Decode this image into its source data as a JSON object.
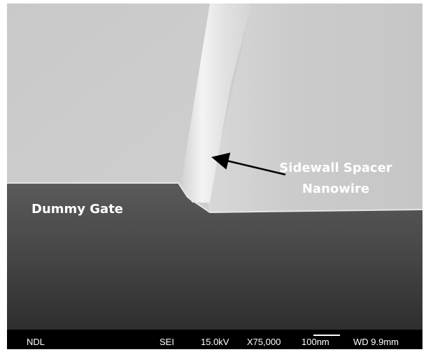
{
  "annotations": {
    "spacer_line1": "Sidewall Spacer",
    "spacer_line2": "Nanowire",
    "gate": "Dummy Gate"
  },
  "info_bar": {
    "lab": "NDL",
    "detector": "SEI",
    "voltage": "15.0kV",
    "magnification": "X75,000",
    "scale": "100nm",
    "working_distance": "WD 9.9mm"
  }
}
